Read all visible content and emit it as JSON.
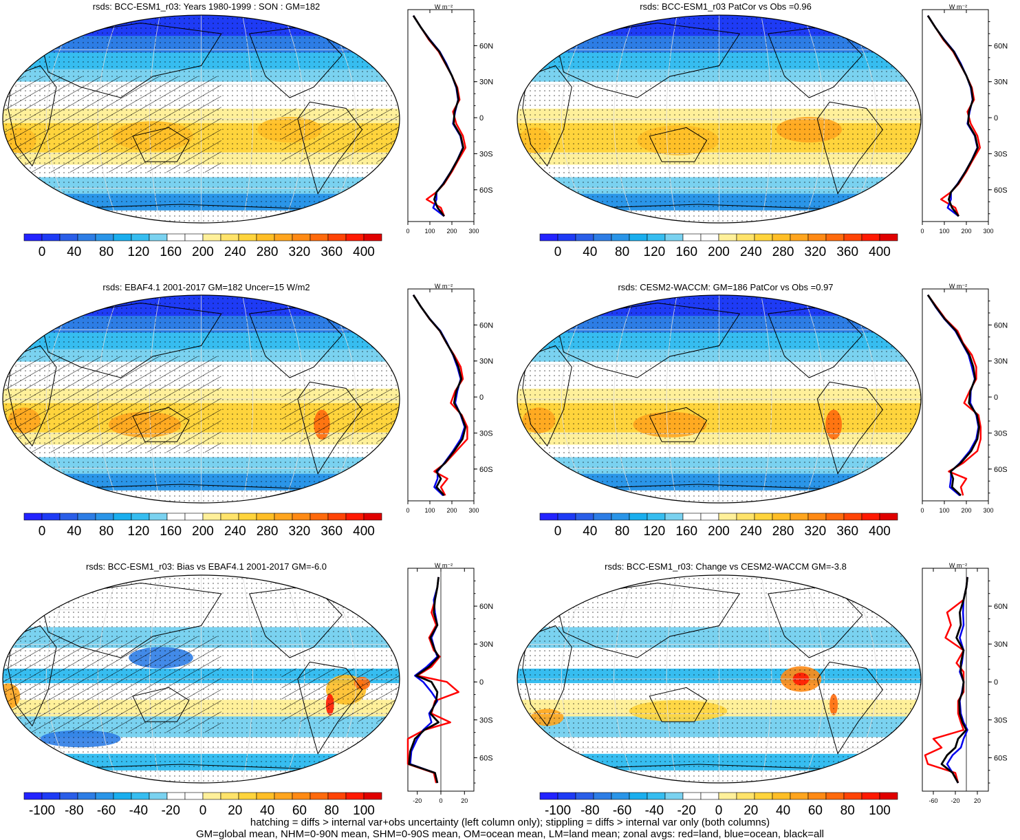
{
  "chart_data": [
    {
      "type": "heatmap",
      "title": "rsds: BCC-ESM1_r03: Years 1980-1999 : SON : GM=182",
      "zonal_axis": {
        "unit": "W m⁻²",
        "xticks": [
          "0",
          "100",
          "200",
          "300"
        ],
        "xlim": [
          0,
          300
        ],
        "yticks": [
          "60N",
          "30N",
          "0",
          "30S",
          "60S"
        ]
      },
      "colorbar": {
        "ticks": [
          "0",
          "40",
          "80",
          "120",
          "160",
          "200",
          "240",
          "280",
          "320",
          "360",
          "400"
        ]
      },
      "zonal": {
        "lat": [
          85,
          75,
          65,
          55,
          45,
          35,
          25,
          15,
          5,
          -5,
          -15,
          -25,
          -35,
          -45,
          -55,
          -62,
          -68,
          -75,
          -82
        ],
        "land": [
          25,
          60,
          95,
          140,
          170,
          200,
          225,
          235,
          205,
          220,
          250,
          262,
          230,
          200,
          165,
          130,
          85,
          150,
          165
        ],
        "ocean": [
          25,
          60,
          100,
          145,
          175,
          200,
          220,
          228,
          215,
          205,
          238,
          250,
          225,
          195,
          160,
          130,
          130,
          115,
          165
        ],
        "all": [
          25,
          60,
          98,
          143,
          172,
          200,
          222,
          230,
          212,
          208,
          240,
          252,
          226,
          196,
          162,
          130,
          120,
          135,
          165
        ]
      }
    },
    {
      "type": "heatmap",
      "title": "rsds: BCC-ESM1_r03 PatCor vs Obs =0.96",
      "zonal_axis": {
        "unit": "W m⁻²",
        "xticks": [
          "0",
          "100",
          "200",
          "300"
        ],
        "xlim": [
          0,
          300
        ],
        "yticks": [
          "60N",
          "30N",
          "0",
          "30S",
          "60S"
        ]
      },
      "colorbar": {
        "ticks": [
          "0",
          "40",
          "80",
          "120",
          "160",
          "200",
          "240",
          "280",
          "320",
          "360",
          "400"
        ]
      },
      "zonal": {
        "lat": [
          85,
          75,
          65,
          55,
          45,
          35,
          25,
          15,
          5,
          -5,
          -15,
          -25,
          -35,
          -45,
          -55,
          -62,
          -68,
          -75,
          -82
        ],
        "land": [
          25,
          60,
          95,
          140,
          170,
          200,
          225,
          235,
          205,
          220,
          250,
          262,
          230,
          200,
          165,
          130,
          85,
          150,
          165
        ],
        "ocean": [
          25,
          60,
          100,
          145,
          175,
          200,
          220,
          228,
          215,
          205,
          238,
          250,
          225,
          195,
          160,
          130,
          130,
          115,
          165
        ],
        "all": [
          25,
          60,
          98,
          143,
          172,
          200,
          222,
          230,
          212,
          208,
          240,
          252,
          226,
          196,
          162,
          130,
          120,
          135,
          165
        ]
      }
    },
    {
      "type": "heatmap",
      "title": "rsds: EBAF4.1 2001-2017 GM=182 Uncer=15 W/m2",
      "zonal_axis": {
        "unit": "W m⁻²",
        "xticks": [
          "0",
          "100",
          "200",
          "300"
        ],
        "xlim": [
          0,
          300
        ],
        "yticks": [
          "60N",
          "30N",
          "0",
          "30S",
          "60S"
        ]
      },
      "colorbar": {
        "ticks": [
          "0",
          "40",
          "80",
          "120",
          "160",
          "200",
          "240",
          "280",
          "320",
          "360",
          "400"
        ]
      },
      "zonal": {
        "lat": [
          85,
          75,
          65,
          55,
          45,
          35,
          25,
          15,
          5,
          -5,
          -15,
          -25,
          -35,
          -45,
          -55,
          -62,
          -68,
          -75,
          -82
        ],
        "land": [
          25,
          60,
          98,
          145,
          175,
          210,
          240,
          250,
          215,
          195,
          245,
          270,
          270,
          220,
          170,
          120,
          180,
          150,
          170
        ],
        "ocean": [
          25,
          60,
          100,
          148,
          178,
          205,
          225,
          240,
          225,
          215,
          240,
          258,
          240,
          205,
          165,
          135,
          135,
          120,
          160
        ],
        "all": [
          25,
          60,
          99,
          146,
          176,
          207,
          230,
          243,
          220,
          210,
          242,
          262,
          248,
          210,
          168,
          130,
          150,
          130,
          165
        ]
      }
    },
    {
      "type": "heatmap",
      "title": "rsds: CESM2-WACCM: GM=186 PatCor vs Obs =0.97",
      "zonal_axis": {
        "unit": "W m⁻²",
        "xticks": [
          "0",
          "100",
          "200",
          "300"
        ],
        "xlim": [
          0,
          300
        ],
        "yticks": [
          "60N",
          "30N",
          "0",
          "30S",
          "60S"
        ]
      },
      "colorbar": {
        "ticks": [
          "0",
          "40",
          "80",
          "120",
          "160",
          "200",
          "240",
          "280",
          "320",
          "360",
          "400"
        ]
      },
      "zonal": {
        "lat": [
          85,
          75,
          65,
          55,
          45,
          35,
          25,
          15,
          5,
          -5,
          -15,
          -25,
          -35,
          -45,
          -55,
          -62,
          -68,
          -75,
          -82
        ],
        "land": [
          25,
          65,
          105,
          160,
          185,
          225,
          245,
          245,
          215,
          190,
          255,
          265,
          265,
          250,
          185,
          120,
          200,
          175,
          185
        ],
        "ocean": [
          25,
          60,
          100,
          150,
          180,
          210,
          225,
          238,
          220,
          218,
          245,
          255,
          245,
          215,
          170,
          130,
          130,
          125,
          170
        ],
        "all": [
          25,
          62,
          102,
          153,
          182,
          214,
          232,
          240,
          218,
          212,
          248,
          258,
          250,
          222,
          174,
          128,
          140,
          135,
          175
        ]
      }
    },
    {
      "type": "heatmap",
      "title": "rsds: BCC-ESM1_r03: Bias vs EBAF4.1 2001-2017  GM=-6.0",
      "zonal_axis": {
        "unit": "W m⁻²",
        "xticks": [
          "-20",
          "0",
          "20"
        ],
        "xlim": [
          -28,
          28
        ],
        "yticks": [
          "60N",
          "30N",
          "0",
          "30S",
          "60S"
        ]
      },
      "colorbar": {
        "ticks": [
          "-100",
          "-80",
          "-60",
          "-40",
          "-20",
          "0",
          "20",
          "40",
          "60",
          "80",
          "100"
        ]
      },
      "zonal": {
        "lat": [
          83,
          75,
          65,
          55,
          45,
          35,
          25,
          20,
          12,
          5,
          0,
          -8,
          -15,
          -25,
          -32,
          -38,
          -45,
          -55,
          -65,
          -72,
          -80
        ],
        "land": [
          -2,
          -3,
          -5,
          -8,
          -4,
          -10,
          -6,
          -1,
          -8,
          -20,
          5,
          15,
          -5,
          -8,
          8,
          -14,
          -28,
          -28,
          -28,
          -6,
          -4
        ],
        "ocean": [
          -2,
          -3,
          -6,
          -5,
          -3,
          -8,
          -5,
          -3,
          -12,
          -22,
          -15,
          -8,
          -3,
          -10,
          -8,
          -15,
          -20,
          -25,
          -26,
          -5,
          -3
        ],
        "all": [
          -2,
          -3,
          -5,
          -6,
          -3,
          -9,
          -5,
          -2,
          -10,
          -21,
          -8,
          -3,
          -4,
          -9,
          -2,
          -14,
          -22,
          -26,
          -27,
          -5,
          -3
        ]
      }
    },
    {
      "type": "heatmap",
      "title": "rsds: BCC-ESM1_r03: Change vs CESM2-WACCM GM=-3.8",
      "zonal_axis": {
        "unit": "W m⁻²",
        "xticks": [
          "-60",
          "-20",
          "20"
        ],
        "xlim": [
          -80,
          40
        ],
        "yticks": [
          "60N",
          "30N",
          "0",
          "30S",
          "60S"
        ]
      },
      "colorbar": {
        "ticks": [
          "-100",
          "-80",
          "-60",
          "-40",
          "-20",
          "0",
          "20",
          "40",
          "60",
          "80",
          "100"
        ]
      },
      "zonal": {
        "lat": [
          83,
          75,
          65,
          55,
          45,
          35,
          25,
          15,
          8,
          0,
          -8,
          -15,
          -25,
          -32,
          -38,
          -45,
          -52,
          -58,
          -65,
          -72,
          -80
        ],
        "land": [
          2,
          0,
          -5,
          -35,
          -28,
          -38,
          -5,
          -18,
          -5,
          -5,
          -5,
          -15,
          -15,
          -10,
          -5,
          -60,
          -45,
          -75,
          -70,
          -20,
          -15
        ],
        "ocean": [
          2,
          0,
          -5,
          -6,
          -5,
          -12,
          -5,
          -8,
          -12,
          -5,
          -8,
          -12,
          -10,
          -5,
          2,
          -5,
          -10,
          -25,
          -35,
          -25,
          -15
        ],
        "all": [
          2,
          0,
          -5,
          -12,
          -10,
          -18,
          -5,
          -10,
          -10,
          -5,
          -7,
          -13,
          -12,
          -7,
          0,
          -15,
          -20,
          -35,
          -45,
          -25,
          -15
        ]
      }
    }
  ],
  "footnote": {
    "line1": "hatching = diffs > internal var+obs uncertainty (left column only); stippling = diffs > internal var only (both columns)",
    "line2": "GM=global mean, NHM=0-90N mean, SHM=0-90S mean, OM=ocean mean, LM=land mean; zonal avgs: red=land, blue=ocean, black=all"
  },
  "colors": {
    "land": "#ff0000",
    "ocean": "#0000ee",
    "all": "#000000",
    "abs_palette": [
      "#2323ff",
      "#1e3bf5",
      "#2a5ee8",
      "#2d7de5",
      "#2a95e8",
      "#1aaeee",
      "#36bdf0",
      "#7ad2f0",
      "#ffffff",
      "#ffffff",
      "#fff09a",
      "#ffe36a",
      "#ffd43c",
      "#ffbe26",
      "#ffa51e",
      "#ff8a14",
      "#ff6a0c",
      "#ff4406",
      "#ff1a02",
      "#e00000"
    ],
    "diff_palette": [
      "#2323ff",
      "#1e3bf5",
      "#2a5ee8",
      "#2d7de5",
      "#2a95e8",
      "#1aaeee",
      "#36bdf0",
      "#7ad2f0",
      "#ffffff",
      "#ffffff",
      "#fff09a",
      "#ffe36a",
      "#ffd43c",
      "#ffbe26",
      "#ffa51e",
      "#ff8a14",
      "#ff6a0c",
      "#ff4406",
      "#ff1a02",
      "#e00000"
    ]
  }
}
